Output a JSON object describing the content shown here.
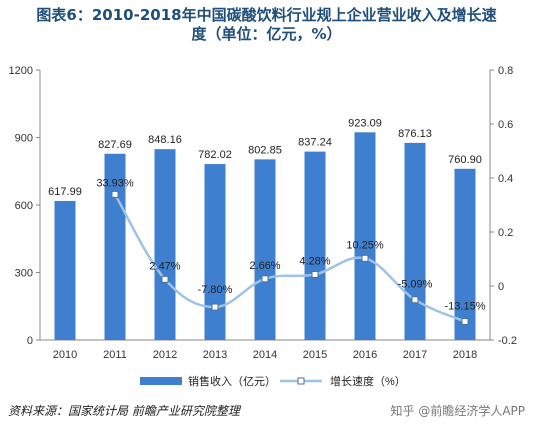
{
  "title": {
    "line1": "图表6：2010-2018年中国碳酸饮料行业规上企业营业收入及增长速",
    "line2": "度（单位：亿元，%）"
  },
  "source": "资料来源：国家统计局 前瞻产业研究院整理",
  "watermark": "知乎 @前瞻经济学人APP",
  "colors": {
    "bar": "#3f7fcf",
    "line": "#9ec3e6",
    "marker_fill": "#ffffff",
    "marker_stroke": "#4a6f97",
    "axis_text": "#333333",
    "title": "#1f4e79"
  },
  "chart_data": {
    "type": "bar",
    "categories": [
      "2010",
      "2011",
      "2012",
      "2013",
      "2014",
      "2015",
      "2016",
      "2017",
      "2018"
    ],
    "series": [
      {
        "name": "销售收入（亿元）",
        "type": "bar",
        "axis": "left",
        "values": [
          617.99,
          827.69,
          848.16,
          782.02,
          802.85,
          837.24,
          923.09,
          876.13,
          760.9
        ],
        "labels": [
          "617.99",
          "827.69",
          "848.16",
          "782.02",
          "802.85",
          "837.24",
          "923.09",
          "876.13",
          "760.90"
        ]
      },
      {
        "name": "增长速度（%）",
        "type": "line",
        "axis": "right",
        "values": [
          null,
          33.93,
          2.47,
          -7.8,
          2.66,
          4.28,
          10.25,
          -5.09,
          -13.15
        ],
        "labels": [
          "",
          "33.93%",
          "2.47%",
          "-7.80%",
          "2.66%",
          "4.28%",
          "10.25%",
          "-5.09%",
          "-13.15%"
        ]
      }
    ],
    "y_left": {
      "min": 0,
      "max": 1200,
      "ticks": [
        "0",
        "300",
        "600",
        "900",
        "1200"
      ]
    },
    "y_right": {
      "min": -0.2,
      "max": 0.8,
      "ticks": [
        "-0.2",
        "0",
        "0.2",
        "0.4",
        "0.6",
        "0.8"
      ]
    },
    "legend_position": "bottom",
    "grid": false
  }
}
